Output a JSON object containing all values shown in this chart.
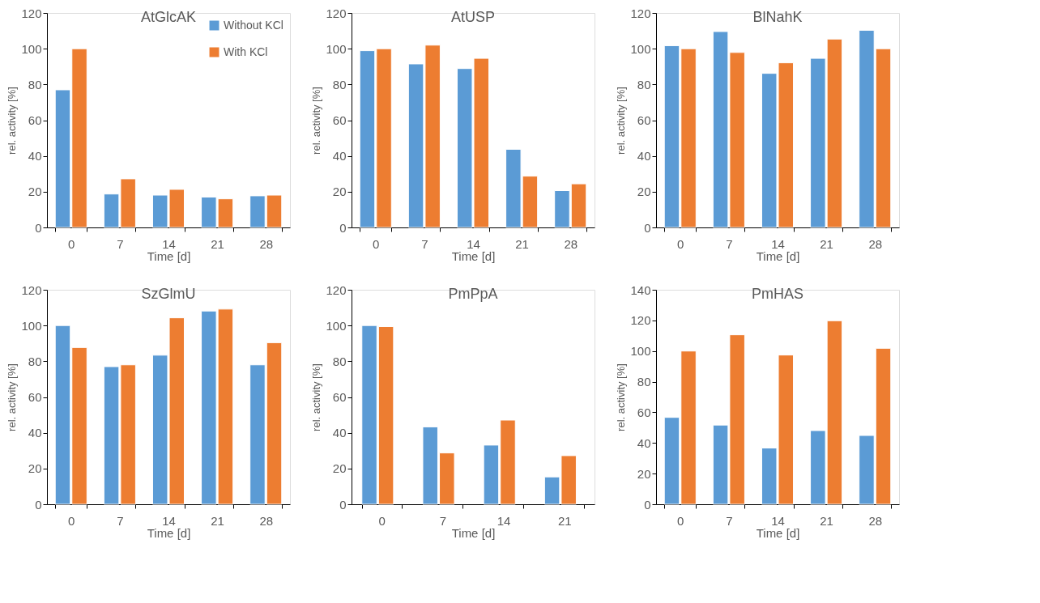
{
  "chart_data": [
    {
      "type": "bar",
      "title": "AtGlcAK",
      "xlabel": "Time [d]",
      "ylabel": "rel. activity [%]",
      "categories": [
        "0",
        "7",
        "14",
        "21",
        "28"
      ],
      "ylim": [
        0,
        120
      ],
      "yticks": [
        0,
        20,
        40,
        60,
        80,
        100,
        120
      ],
      "legend": "top right",
      "series": [
        {
          "name": "Without KCl",
          "color": "#5b9bd5",
          "values": [
            77,
            18.7,
            18.1,
            17,
            17.7
          ]
        },
        {
          "name": "With KCl",
          "color": "#ed7d31",
          "values": [
            100,
            27.2,
            21.3,
            16,
            18.1
          ]
        }
      ]
    },
    {
      "type": "bar",
      "title": "AtUSP",
      "xlabel": "Time [d]",
      "ylabel": "rel. activity [%]",
      "categories": [
        "0",
        "7",
        "14",
        "21",
        "28"
      ],
      "ylim": [
        0,
        120
      ],
      "yticks": [
        0,
        20,
        40,
        60,
        80,
        100,
        120
      ],
      "series": [
        {
          "color": "#5b9bd5",
          "values": [
            98.9,
            91.5,
            88.9,
            43.7,
            20.6
          ]
        },
        {
          "color": "#ed7d31",
          "values": [
            100,
            102,
            94.6,
            28.7,
            24.4
          ]
        }
      ]
    },
    {
      "type": "bar",
      "title": "BlNahK",
      "xlabel": "Time [d]",
      "ylabel": "rel. activity [%]",
      "categories": [
        "0",
        "7",
        "14",
        "21",
        "28"
      ],
      "ylim": [
        0,
        120
      ],
      "yticks": [
        0,
        20,
        40,
        60,
        80,
        100,
        120
      ],
      "series": [
        {
          "color": "#5b9bd5",
          "values": [
            101.7,
            109.6,
            86.2,
            94.6,
            110.3
          ]
        },
        {
          "color": "#ed7d31",
          "values": [
            100,
            97.9,
            92.1,
            105.4,
            100
          ]
        }
      ]
    },
    {
      "type": "bar",
      "title": "SzGlmU",
      "xlabel": "Time [d]",
      "ylabel": "rel. activity [%]",
      "categories": [
        "0",
        "7",
        "14",
        "21",
        "28"
      ],
      "ylim": [
        0,
        120
      ],
      "yticks": [
        0,
        20,
        40,
        60,
        80,
        100,
        120
      ],
      "series": [
        {
          "color": "#5b9bd5",
          "values": [
            100,
            77,
            83.4,
            108.1,
            78
          ]
        },
        {
          "color": "#ed7d31",
          "values": [
            87.7,
            78,
            104.3,
            109.2,
            90.4
          ]
        }
      ]
    },
    {
      "type": "bar",
      "title": "PmPpA",
      "xlabel": "Time [d]",
      "ylabel": "rel. activity [%]",
      "categories": [
        "0",
        "7",
        "14",
        "21"
      ],
      "ylim": [
        0,
        120
      ],
      "yticks": [
        0,
        20,
        40,
        60,
        80,
        100,
        120
      ],
      "series": [
        {
          "color": "#5b9bd5",
          "values": [
            100,
            43.3,
            33.1,
            15.3
          ]
        },
        {
          "color": "#ed7d31",
          "values": [
            99.4,
            28.7,
            47.1,
            27.2
          ]
        }
      ]
    },
    {
      "type": "bar",
      "title": "PmHAS",
      "xlabel": "Time [d]",
      "ylabel": "rel. activity [%]",
      "categories": [
        "0",
        "7",
        "14",
        "21",
        "28"
      ],
      "ylim": [
        0,
        140
      ],
      "yticks": [
        0,
        20,
        40,
        60,
        80,
        100,
        120,
        140
      ],
      "series": [
        {
          "color": "#5b9bd5",
          "values": [
            56.7,
            51.7,
            36.7,
            48.1,
            44.9
          ]
        },
        {
          "color": "#ed7d31",
          "values": [
            100,
            110.6,
            97.4,
            119.8,
            101.8
          ]
        }
      ]
    }
  ]
}
